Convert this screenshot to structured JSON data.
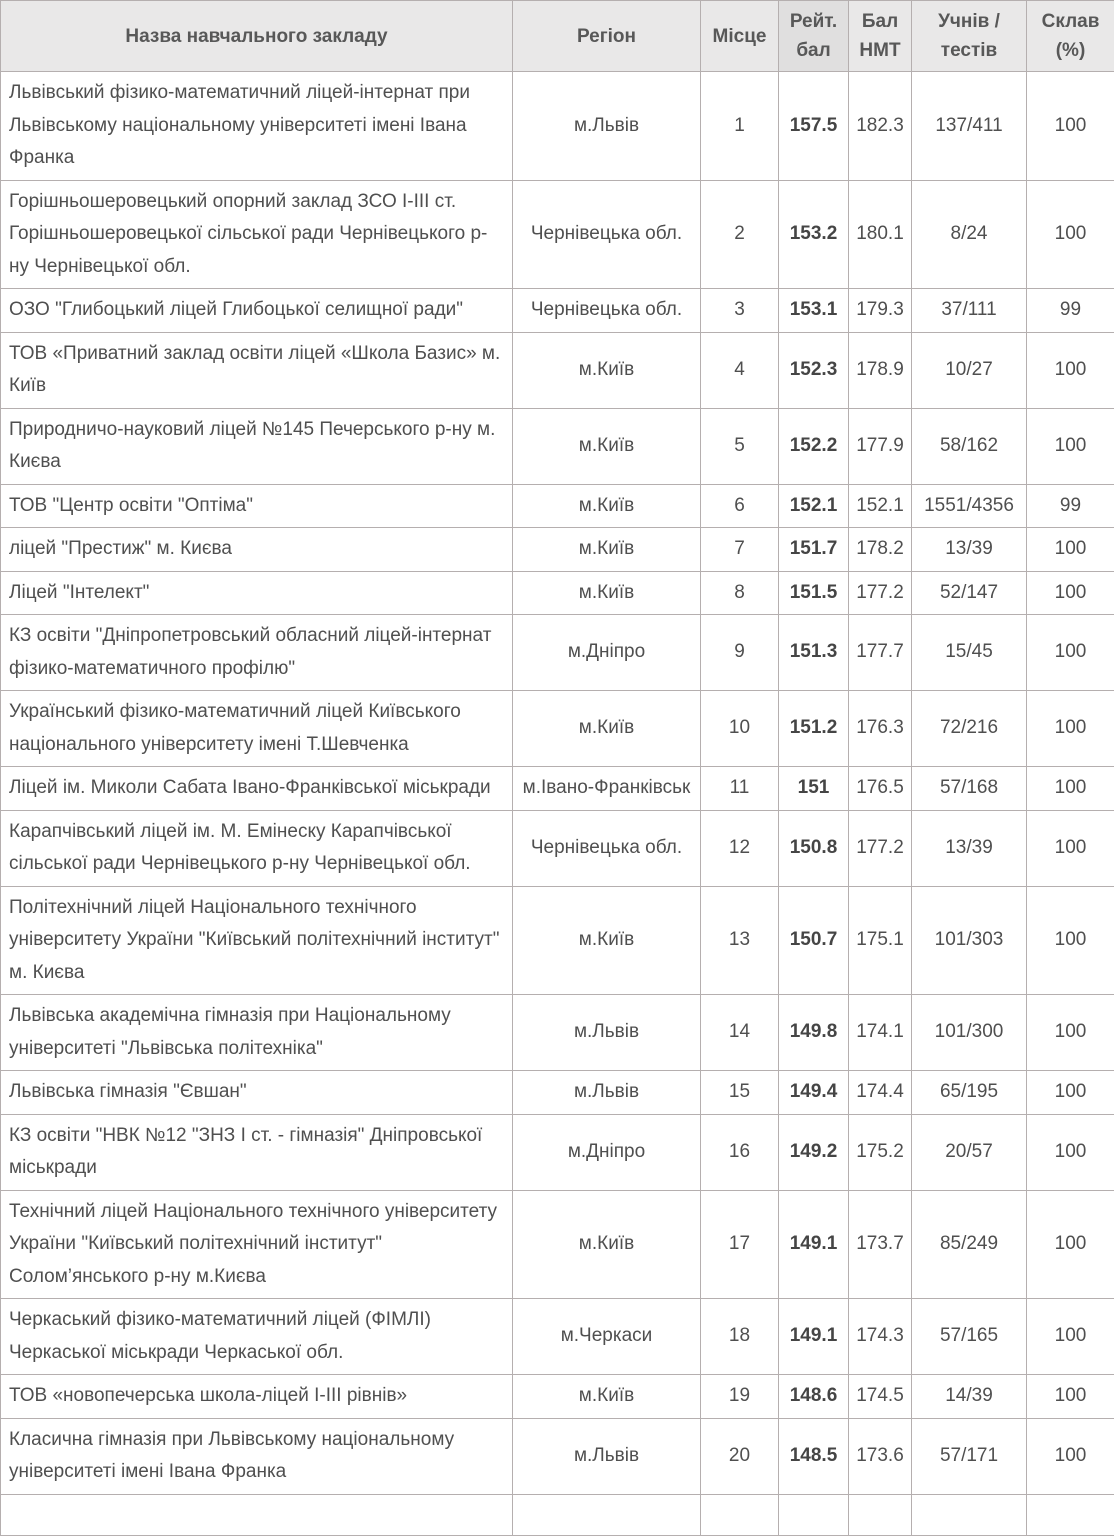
{
  "chart_data": {
    "type": "table",
    "title": "",
    "columns": [
      "Назва навчального закладу",
      "Регіон",
      "Місце",
      "Рейт. бал",
      "Бал НМТ",
      "Учнів / тестів",
      "Склав (%)"
    ],
    "sorted_column": "Рейт. бал",
    "rows": [
      {
        "name": "Львівський фізико-математичний ліцей-інтернат при Львівському національному університеті імені Івана Франка",
        "region": "м.Львів",
        "place": 1,
        "rating": 157.5,
        "nmt": 182.3,
        "ratio": "137/411",
        "passed": 100
      },
      {
        "name": "Горішньошеровецький опорний заклад ЗСО І-ІІІ ст. Горішньошеровецької сільської ради Чернівецького р-ну Чернівецької обл.",
        "region": "Чернівецька обл.",
        "place": 2,
        "rating": 153.2,
        "nmt": 180.1,
        "ratio": "8/24",
        "passed": 100
      },
      {
        "name": "ОЗО \"Глибоцький ліцей Глибоцької селищної ради\"",
        "region": "Чернівецька обл.",
        "place": 3,
        "rating": 153.1,
        "nmt": 179.3,
        "ratio": "37/111",
        "passed": 99
      },
      {
        "name": "ТОВ «Приватний заклад освіти ліцей «Школа Базис» м. Київ",
        "region": "м.Київ",
        "place": 4,
        "rating": 152.3,
        "nmt": 178.9,
        "ratio": "10/27",
        "passed": 100
      },
      {
        "name": "Природничо-науковий ліцей №145 Печерського р-ну м. Києва",
        "region": "м.Київ",
        "place": 5,
        "rating": 152.2,
        "nmt": 177.9,
        "ratio": "58/162",
        "passed": 100
      },
      {
        "name": "ТОВ \"Центр освіти \"Оптіма\"",
        "region": "м.Київ",
        "place": 6,
        "rating": 152.1,
        "nmt": 152.1,
        "ratio": "1551/4356",
        "passed": 99
      },
      {
        "name": "ліцей \"Престиж\" м. Києва",
        "region": "м.Київ",
        "place": 7,
        "rating": 151.7,
        "nmt": 178.2,
        "ratio": "13/39",
        "passed": 100
      },
      {
        "name": "Ліцей \"Інтелект\"",
        "region": "м.Київ",
        "place": 8,
        "rating": 151.5,
        "nmt": 177.2,
        "ratio": "52/147",
        "passed": 100
      },
      {
        "name": "КЗ освіти \"Дніпропетровський обласний ліцей-інтернат фізико-математичного профілю\"",
        "region": "м.Дніпро",
        "place": 9,
        "rating": 151.3,
        "nmt": 177.7,
        "ratio": "15/45",
        "passed": 100
      },
      {
        "name": "Український фізико-математичний ліцей Київського національного університету імені Т.Шевченка",
        "region": "м.Київ",
        "place": 10,
        "rating": 151.2,
        "nmt": 176.3,
        "ratio": "72/216",
        "passed": 100
      },
      {
        "name": "Ліцей ім. Миколи Сабата Івано-Франківської міськради",
        "region": "м.Івано-Франківськ",
        "place": 11,
        "rating": 151,
        "nmt": 176.5,
        "ratio": "57/168",
        "passed": 100
      },
      {
        "name": "Карапчівський ліцей ім. М. Емінеску Карапчівської сільської ради Чернівецького р-ну Чернівецької обл.",
        "region": "Чернівецька обл.",
        "place": 12,
        "rating": 150.8,
        "nmt": 177.2,
        "ratio": "13/39",
        "passed": 100
      },
      {
        "name": "Політехнічний ліцей Національного технічного університету України \"Київський політехнічний інститут\" м. Києва",
        "region": "м.Київ",
        "place": 13,
        "rating": 150.7,
        "nmt": 175.1,
        "ratio": "101/303",
        "passed": 100
      },
      {
        "name": "Львівська академічна гімназія при Національному університеті \"Львівська політехніка\"",
        "region": "м.Львів",
        "place": 14,
        "rating": 149.8,
        "nmt": 174.1,
        "ratio": "101/300",
        "passed": 100
      },
      {
        "name": "Львівська гімназія \"Євшан\"",
        "region": "м.Львів",
        "place": 15,
        "rating": 149.4,
        "nmt": 174.4,
        "ratio": "65/195",
        "passed": 100
      },
      {
        "name": "КЗ освіти \"НВК №12 \"ЗНЗ І ст. - гімназія\" Дніпровської міськради",
        "region": "м.Дніпро",
        "place": 16,
        "rating": 149.2,
        "nmt": 175.2,
        "ratio": "20/57",
        "passed": 100
      },
      {
        "name": "Технічний ліцей Національного технічного університету України \"Київський політехнічний інститут\" Солом’янського р-ну м.Києва",
        "region": "м.Київ",
        "place": 17,
        "rating": 149.1,
        "nmt": 173.7,
        "ratio": "85/249",
        "passed": 100
      },
      {
        "name": "Черкаський фізико-математичний ліцей (ФІМЛІ) Черкаської міськради Черкаської обл.",
        "region": "м.Черкаси",
        "place": 18,
        "rating": 149.1,
        "nmt": 174.3,
        "ratio": "57/165",
        "passed": 100
      },
      {
        "name": "ТОВ «новопечерська школа-ліцей І-ІІІ рівнів»",
        "region": "м.Київ",
        "place": 19,
        "rating": 148.6,
        "nmt": 174.5,
        "ratio": "14/39",
        "passed": 100
      },
      {
        "name": "Класична гімназія при Львівському національному університеті імені Івана Франка",
        "region": "м.Львів",
        "place": 20,
        "rating": 148.5,
        "nmt": 173.6,
        "ratio": "57/171",
        "passed": 100
      }
    ]
  },
  "style": {
    "header_bg": "#e9e8e8",
    "sorted_header_bg": "#e0dfdf",
    "border": "#b5afaf",
    "text": "#4f4f4f",
    "header_text": "#585858",
    "rating_text": "#454545"
  }
}
